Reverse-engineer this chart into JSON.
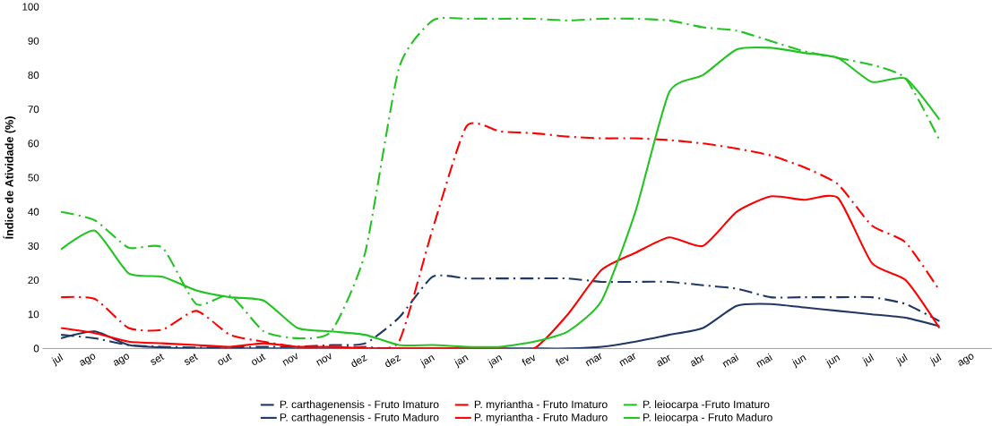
{
  "chart_data": {
    "type": "line",
    "ylabel": "Índice de Atividade (%)",
    "categories": [
      "jul",
      "ago",
      "ago",
      "set",
      "set",
      "out",
      "out",
      "nov",
      "nov",
      "dez",
      "dez",
      "jan",
      "jan",
      "jan",
      "fev",
      "fev",
      "mar",
      "mar",
      "abr",
      "abr",
      "mai",
      "mai",
      "jun",
      "jun",
      "jul",
      "jul",
      "jul",
      "ago"
    ],
    "ylim": [
      0,
      100
    ],
    "yticks": [
      0,
      10,
      20,
      30,
      40,
      50,
      60,
      70,
      80,
      90,
      100
    ],
    "legend": "bottom",
    "marker": "none",
    "series": [
      {
        "name": "P. carthagenensis - Fruto Imaturo",
        "color": "#1f3864",
        "line_style": "dashdot",
        "values": [
          4,
          3,
          1,
          0.5,
          0.3,
          0.3,
          0.5,
          0.5,
          1,
          1.5,
          9,
          21,
          20.5,
          20.5,
          20.5,
          20.5,
          19.5,
          19.5,
          19.5,
          18.5,
          17.5,
          15,
          15,
          15,
          15,
          13,
          8,
          null
        ]
      },
      {
        "name": "P. myriantha - Fruto Imaturo",
        "color": "#ff0000",
        "line_style": "dashdot",
        "values": [
          15,
          14.5,
          6,
          5.5,
          11,
          4,
          2,
          0.5,
          0.5,
          0.5,
          2,
          35,
          65,
          63.5,
          63,
          62,
          61.5,
          61.5,
          61,
          60,
          58.5,
          56.5,
          53,
          48,
          36,
          31,
          17,
          null
        ]
      },
      {
        "name": "P. leiocarpa -Fruto Imaturo",
        "color": "#22c322",
        "line_style": "dashdot",
        "values": [
          40,
          37.5,
          29.5,
          29.5,
          13,
          15.5,
          5,
          3,
          5,
          28,
          82,
          96,
          96.5,
          96.5,
          96.5,
          96,
          96.5,
          96.5,
          96,
          94,
          93,
          90,
          87,
          85,
          83,
          79,
          61,
          null
        ]
      },
      {
        "name": "P. carthagenensis - Fruto Maduro",
        "color": "#1f3864",
        "line_style": "solid",
        "values": [
          3,
          5,
          1,
          0.3,
          0,
          0,
          0,
          0,
          0,
          0,
          0,
          0,
          0,
          0,
          0,
          0,
          0.5,
          2,
          4,
          6,
          12.5,
          13,
          12,
          11,
          10,
          9,
          6.5,
          null
        ]
      },
      {
        "name": "P. myriantha - Fruto Maduro",
        "color": "#ff0000",
        "line_style": "solid",
        "values": [
          6,
          4.5,
          2,
          1.5,
          1,
          0.5,
          1.5,
          0.5,
          0.5,
          0,
          0,
          0,
          0,
          0,
          0,
          10,
          23,
          28,
          32.5,
          30,
          40,
          44.5,
          43.5,
          44,
          25,
          20,
          6,
          null
        ]
      },
      {
        "name": "P. leiocarpa - Fruto Maduro",
        "color": "#22c322",
        "line_style": "solid",
        "values": [
          29,
          34.5,
          22,
          21,
          17,
          15,
          14,
          6,
          5,
          4,
          1,
          1,
          0.5,
          0.5,
          2,
          5,
          14,
          40,
          75,
          80,
          87.5,
          88,
          86.5,
          85,
          78,
          79,
          67,
          null
        ]
      }
    ]
  }
}
